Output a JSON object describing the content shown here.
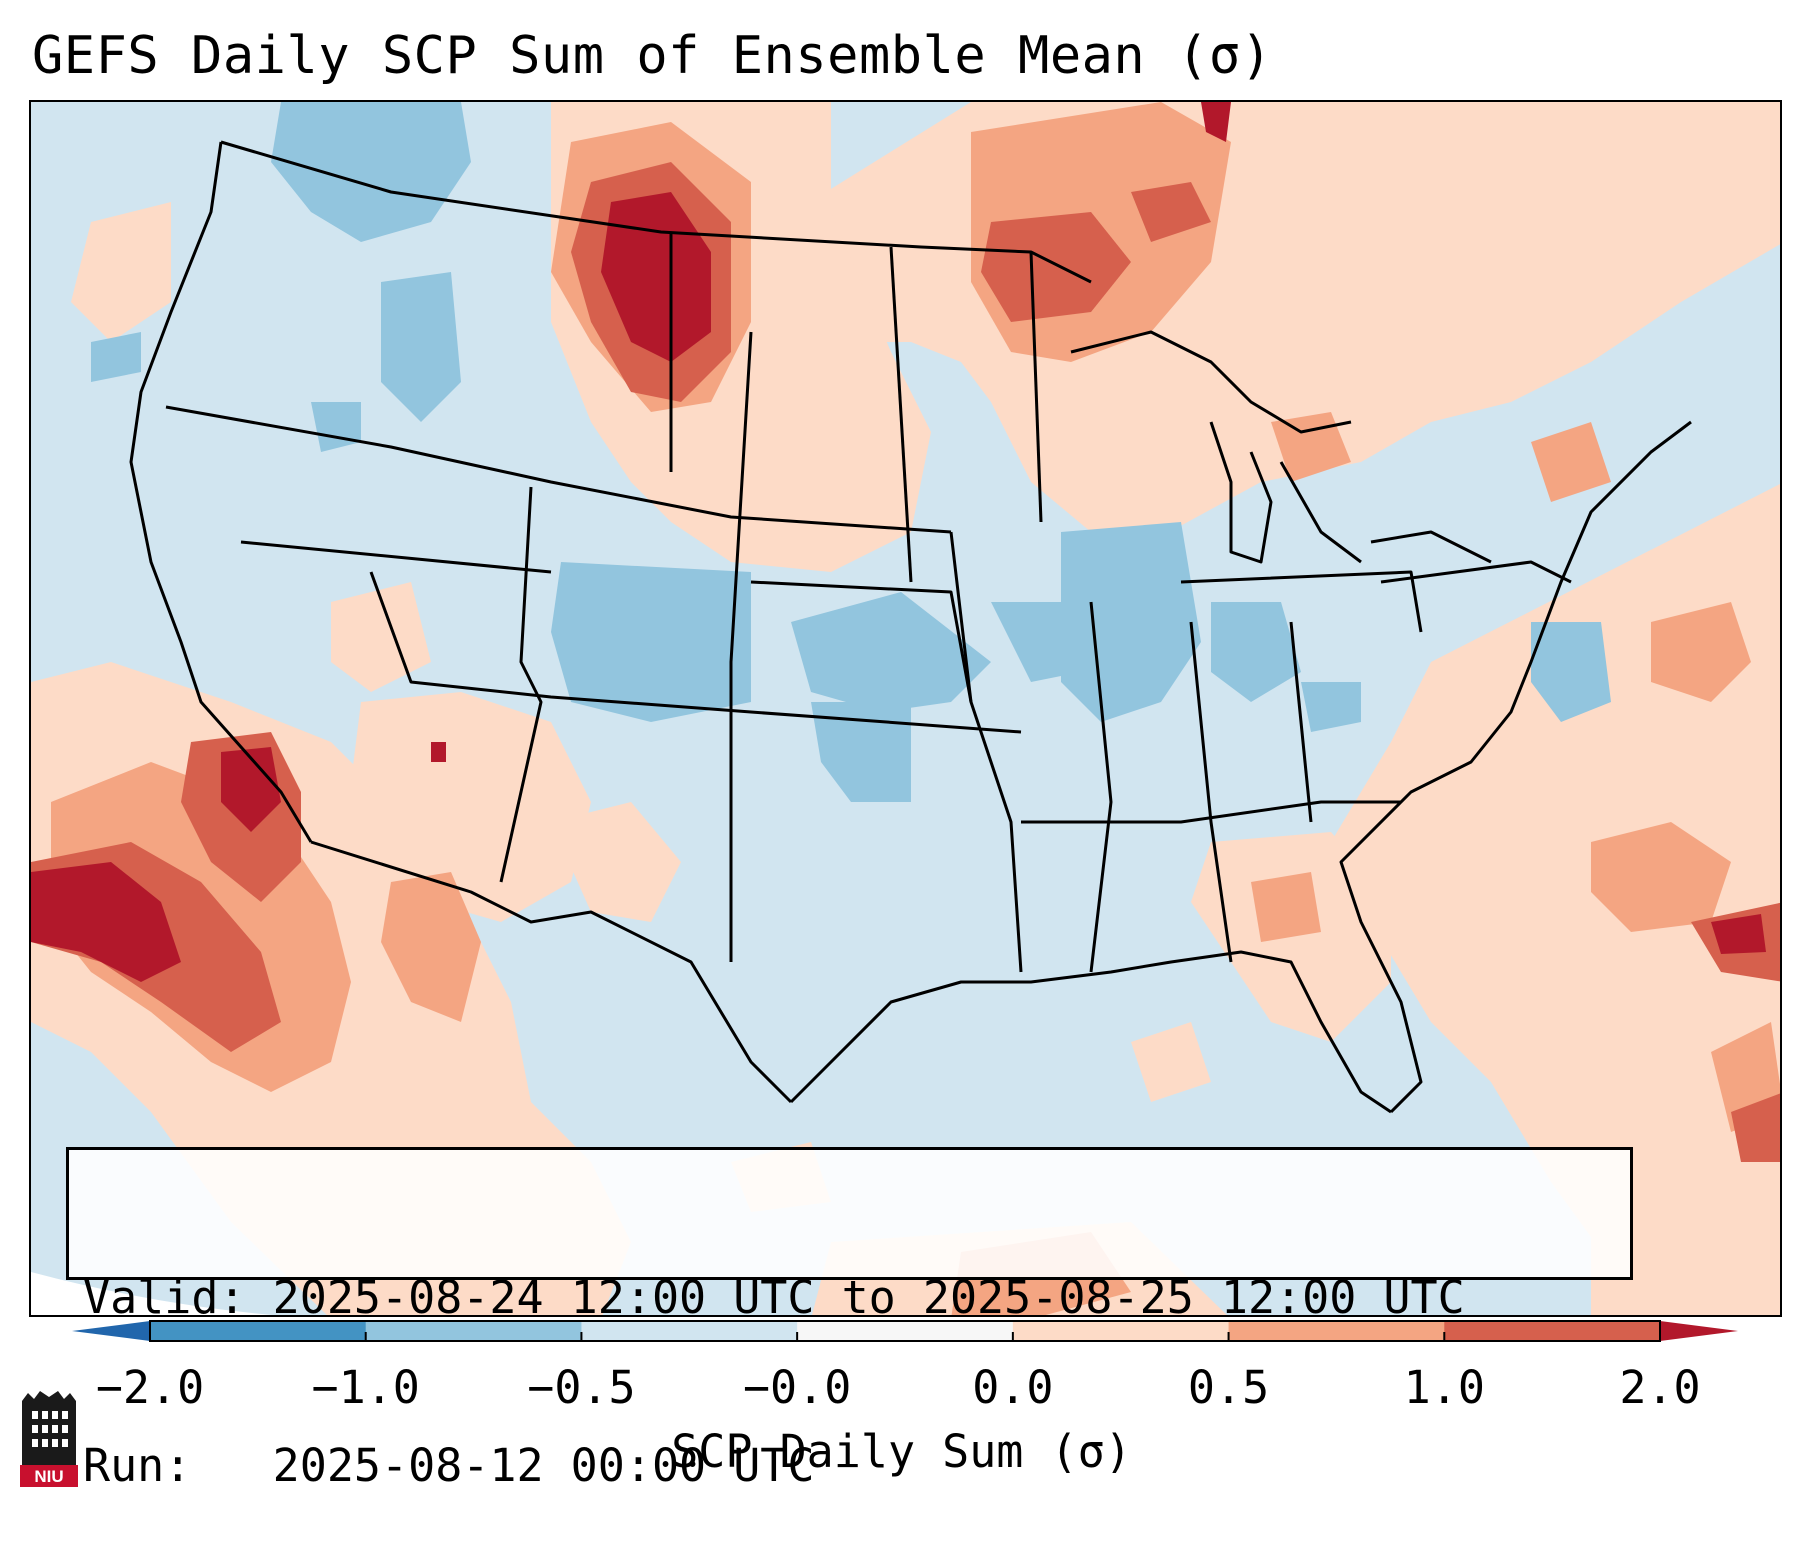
{
  "title": "GEFS Daily SCP Sum of Ensemble Mean (σ)",
  "map": {
    "region": "CONUS",
    "legend_colors": {
      "below_-1.0": "#2166ac",
      "-1.0_to_-0.5": "#67a9cf",
      "-0.5_to_0.0": "#d1e5f0",
      "0.0_to_0.5": "#fddbc7",
      "0.5_to_1.0": "#ef8a62",
      "1.0_to_2.0": "#b2182b"
    }
  },
  "info": {
    "valid_line": "Valid: 2025-08-24 12:00 UTC to 2025-08-25 12:00 UTC",
    "run_line": "Run:   2025-08-12 00:00 UTC"
  },
  "colorbar": {
    "tick_labels": [
      "−2.0",
      "−1.0",
      "−0.5",
      "−0.0",
      "0.0",
      "0.5",
      "1.0",
      "2.0"
    ],
    "bins": [
      {
        "from": -2.0,
        "to": -1.0,
        "color": "#4393c3"
      },
      {
        "from": -1.0,
        "to": -0.5,
        "color": "#92c5de"
      },
      {
        "from": -0.5,
        "to": -0.0,
        "color": "#d1e5f0"
      },
      {
        "from": -0.0,
        "to": 0.0,
        "color": "#f7f7f7"
      },
      {
        "from": 0.0,
        "to": 0.5,
        "color": "#fddbc7"
      },
      {
        "from": 0.5,
        "to": 1.0,
        "color": "#f4a582"
      },
      {
        "from": 1.0,
        "to": 2.0,
        "color": "#d6604d"
      }
    ],
    "under_color": "#2166ac",
    "over_color": "#b2182b",
    "label": "SCP Daily Sum (σ)"
  },
  "logo": {
    "text": "NIU"
  }
}
